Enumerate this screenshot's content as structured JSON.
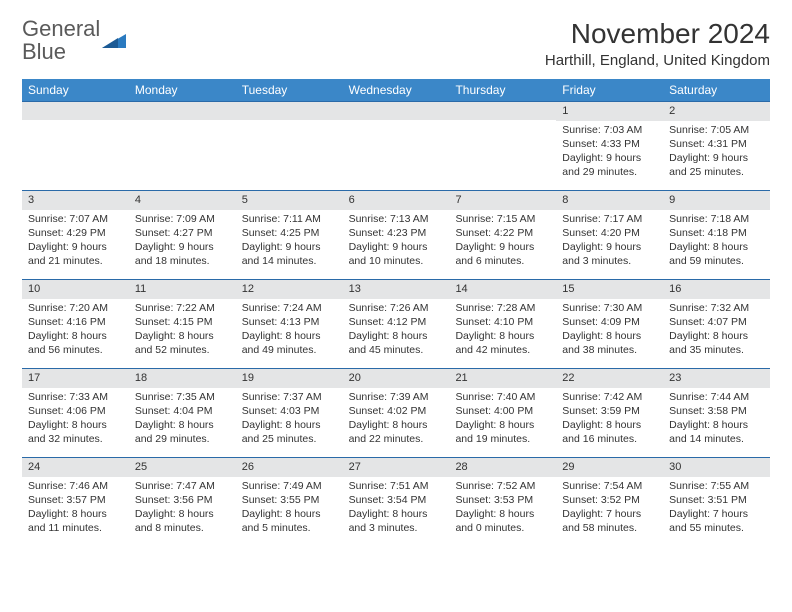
{
  "logo": {
    "text1": "General",
    "text2": "Blue"
  },
  "title": "November 2024",
  "location": "Harthill, England, United Kingdom",
  "colors": {
    "header_bg": "#3b87c8",
    "row_divider": "#2a6aa8",
    "daynum_bg": "#e4e5e6",
    "text": "#333333",
    "logo_gray": "#5a5a5a",
    "logo_blue": "#2a7ac0"
  },
  "day_names": [
    "Sunday",
    "Monday",
    "Tuesday",
    "Wednesday",
    "Thursday",
    "Friday",
    "Saturday"
  ],
  "weeks": [
    [
      {
        "n": "",
        "sr": "",
        "ss": "",
        "dl": ""
      },
      {
        "n": "",
        "sr": "",
        "ss": "",
        "dl": ""
      },
      {
        "n": "",
        "sr": "",
        "ss": "",
        "dl": ""
      },
      {
        "n": "",
        "sr": "",
        "ss": "",
        "dl": ""
      },
      {
        "n": "",
        "sr": "",
        "ss": "",
        "dl": ""
      },
      {
        "n": "1",
        "sr": "Sunrise: 7:03 AM",
        "ss": "Sunset: 4:33 PM",
        "dl": "Daylight: 9 hours and 29 minutes."
      },
      {
        "n": "2",
        "sr": "Sunrise: 7:05 AM",
        "ss": "Sunset: 4:31 PM",
        "dl": "Daylight: 9 hours and 25 minutes."
      }
    ],
    [
      {
        "n": "3",
        "sr": "Sunrise: 7:07 AM",
        "ss": "Sunset: 4:29 PM",
        "dl": "Daylight: 9 hours and 21 minutes."
      },
      {
        "n": "4",
        "sr": "Sunrise: 7:09 AM",
        "ss": "Sunset: 4:27 PM",
        "dl": "Daylight: 9 hours and 18 minutes."
      },
      {
        "n": "5",
        "sr": "Sunrise: 7:11 AM",
        "ss": "Sunset: 4:25 PM",
        "dl": "Daylight: 9 hours and 14 minutes."
      },
      {
        "n": "6",
        "sr": "Sunrise: 7:13 AM",
        "ss": "Sunset: 4:23 PM",
        "dl": "Daylight: 9 hours and 10 minutes."
      },
      {
        "n": "7",
        "sr": "Sunrise: 7:15 AM",
        "ss": "Sunset: 4:22 PM",
        "dl": "Daylight: 9 hours and 6 minutes."
      },
      {
        "n": "8",
        "sr": "Sunrise: 7:17 AM",
        "ss": "Sunset: 4:20 PM",
        "dl": "Daylight: 9 hours and 3 minutes."
      },
      {
        "n": "9",
        "sr": "Sunrise: 7:18 AM",
        "ss": "Sunset: 4:18 PM",
        "dl": "Daylight: 8 hours and 59 minutes."
      }
    ],
    [
      {
        "n": "10",
        "sr": "Sunrise: 7:20 AM",
        "ss": "Sunset: 4:16 PM",
        "dl": "Daylight: 8 hours and 56 minutes."
      },
      {
        "n": "11",
        "sr": "Sunrise: 7:22 AM",
        "ss": "Sunset: 4:15 PM",
        "dl": "Daylight: 8 hours and 52 minutes."
      },
      {
        "n": "12",
        "sr": "Sunrise: 7:24 AM",
        "ss": "Sunset: 4:13 PM",
        "dl": "Daylight: 8 hours and 49 minutes."
      },
      {
        "n": "13",
        "sr": "Sunrise: 7:26 AM",
        "ss": "Sunset: 4:12 PM",
        "dl": "Daylight: 8 hours and 45 minutes."
      },
      {
        "n": "14",
        "sr": "Sunrise: 7:28 AM",
        "ss": "Sunset: 4:10 PM",
        "dl": "Daylight: 8 hours and 42 minutes."
      },
      {
        "n": "15",
        "sr": "Sunrise: 7:30 AM",
        "ss": "Sunset: 4:09 PM",
        "dl": "Daylight: 8 hours and 38 minutes."
      },
      {
        "n": "16",
        "sr": "Sunrise: 7:32 AM",
        "ss": "Sunset: 4:07 PM",
        "dl": "Daylight: 8 hours and 35 minutes."
      }
    ],
    [
      {
        "n": "17",
        "sr": "Sunrise: 7:33 AM",
        "ss": "Sunset: 4:06 PM",
        "dl": "Daylight: 8 hours and 32 minutes."
      },
      {
        "n": "18",
        "sr": "Sunrise: 7:35 AM",
        "ss": "Sunset: 4:04 PM",
        "dl": "Daylight: 8 hours and 29 minutes."
      },
      {
        "n": "19",
        "sr": "Sunrise: 7:37 AM",
        "ss": "Sunset: 4:03 PM",
        "dl": "Daylight: 8 hours and 25 minutes."
      },
      {
        "n": "20",
        "sr": "Sunrise: 7:39 AM",
        "ss": "Sunset: 4:02 PM",
        "dl": "Daylight: 8 hours and 22 minutes."
      },
      {
        "n": "21",
        "sr": "Sunrise: 7:40 AM",
        "ss": "Sunset: 4:00 PM",
        "dl": "Daylight: 8 hours and 19 minutes."
      },
      {
        "n": "22",
        "sr": "Sunrise: 7:42 AM",
        "ss": "Sunset: 3:59 PM",
        "dl": "Daylight: 8 hours and 16 minutes."
      },
      {
        "n": "23",
        "sr": "Sunrise: 7:44 AM",
        "ss": "Sunset: 3:58 PM",
        "dl": "Daylight: 8 hours and 14 minutes."
      }
    ],
    [
      {
        "n": "24",
        "sr": "Sunrise: 7:46 AM",
        "ss": "Sunset: 3:57 PM",
        "dl": "Daylight: 8 hours and 11 minutes."
      },
      {
        "n": "25",
        "sr": "Sunrise: 7:47 AM",
        "ss": "Sunset: 3:56 PM",
        "dl": "Daylight: 8 hours and 8 minutes."
      },
      {
        "n": "26",
        "sr": "Sunrise: 7:49 AM",
        "ss": "Sunset: 3:55 PM",
        "dl": "Daylight: 8 hours and 5 minutes."
      },
      {
        "n": "27",
        "sr": "Sunrise: 7:51 AM",
        "ss": "Sunset: 3:54 PM",
        "dl": "Daylight: 8 hours and 3 minutes."
      },
      {
        "n": "28",
        "sr": "Sunrise: 7:52 AM",
        "ss": "Sunset: 3:53 PM",
        "dl": "Daylight: 8 hours and 0 minutes."
      },
      {
        "n": "29",
        "sr": "Sunrise: 7:54 AM",
        "ss": "Sunset: 3:52 PM",
        "dl": "Daylight: 7 hours and 58 minutes."
      },
      {
        "n": "30",
        "sr": "Sunrise: 7:55 AM",
        "ss": "Sunset: 3:51 PM",
        "dl": "Daylight: 7 hours and 55 minutes."
      }
    ]
  ]
}
